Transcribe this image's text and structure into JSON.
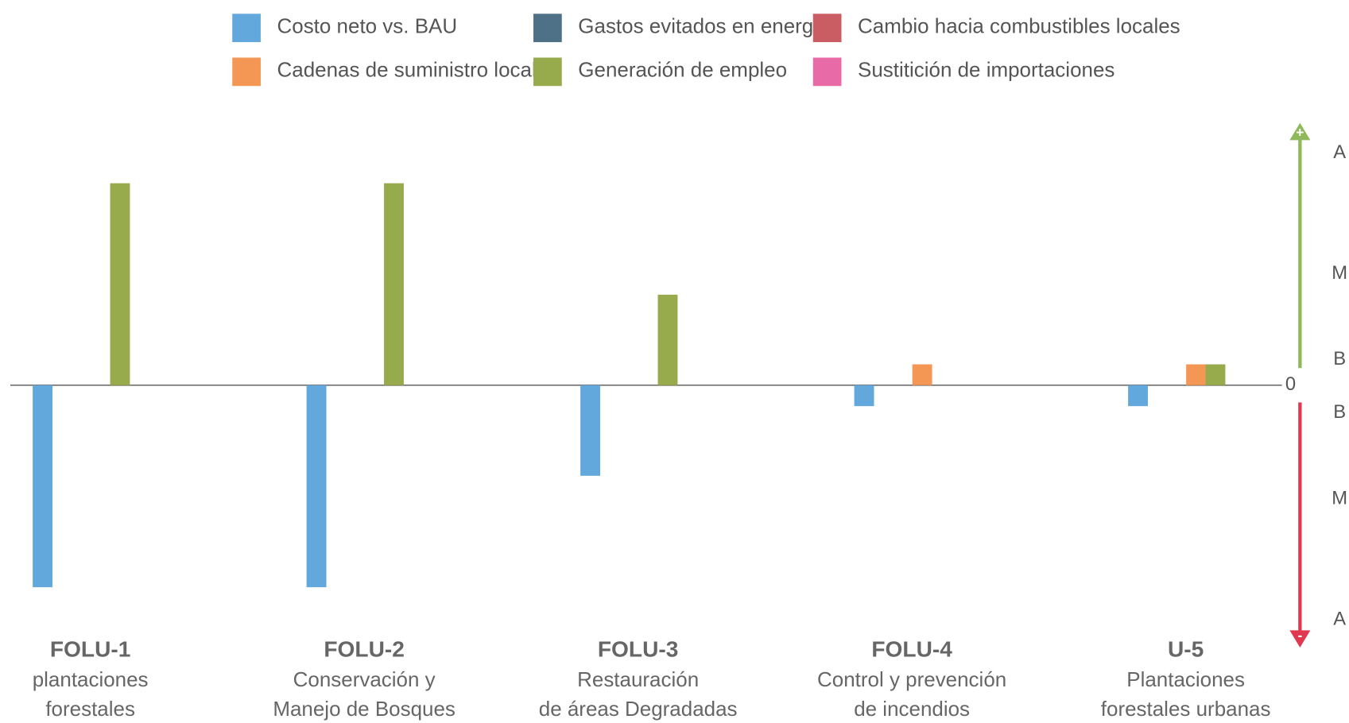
{
  "chart_data": {
    "type": "bar",
    "categories": [
      "FOLU-1",
      "FOLU-2",
      "FOLU-3",
      "FOLU-4",
      "U-5"
    ],
    "category_descriptions": [
      [
        "plantaciones",
        "forestales"
      ],
      [
        "Conservación y",
        "Manejo de Bosques"
      ],
      [
        "Restauración",
        "de áreas Degradadas"
      ],
      [
        "Control y prevención",
        "de incendios"
      ],
      [
        "Plantaciones",
        "forestales urbanas"
      ]
    ],
    "series": [
      {
        "name": "Costo neto vs. BAU",
        "color": "#62a8dd",
        "values": [
          -8.7,
          -8.7,
          -3.9,
          -0.9,
          -0.9
        ]
      },
      {
        "name": "Gastos evitados en energía",
        "color": "#4f7187",
        "values": [
          0,
          0,
          0,
          0,
          0
        ]
      },
      {
        "name": "Cambio hacia combustibles locales",
        "color": "#c95d63",
        "values": [
          0,
          0,
          0,
          0,
          0
        ]
      },
      {
        "name": "Cadenas de suministro locales",
        "color": "#f49654",
        "values": [
          0,
          0,
          0,
          0.9,
          0.9
        ]
      },
      {
        "name": "Generación de empleo",
        "color": "#97ab4c",
        "values": [
          8.7,
          8.7,
          3.9,
          0,
          0.9
        ]
      },
      {
        "name": "Sustitición de importaciones",
        "color": "#e86aa6",
        "values": [
          0,
          0,
          0,
          0,
          0
        ]
      }
    ],
    "ylim": [
      -11.2,
      11.2
    ],
    "yticks": [
      {
        "value": 10,
        "label": "A"
      },
      {
        "value": 4.8,
        "label": "M"
      },
      {
        "value": 1.1,
        "label": "B"
      },
      0,
      {
        "value": -1.2,
        "label": "B"
      },
      {
        "value": -4.9,
        "label": "M"
      },
      {
        "value": -10.1,
        "label": "A"
      }
    ],
    "axis_signs": [
      "+",
      "-"
    ]
  }
}
